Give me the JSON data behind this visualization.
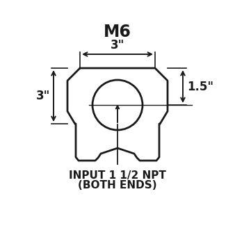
{
  "title": "M6",
  "bg_color": "#ffffff",
  "line_color": "#1a1a1a",
  "title_fontsize": 14,
  "dim_fontsize": 12,
  "label_fontsize": 11,
  "dim_width": "3\"",
  "dim_height": "3\"",
  "dim_radius": "1.5\"",
  "bottom_label_line1": "INPUT 1 1/2 NPT",
  "bottom_label_line2": "(BOTH ENDS)"
}
